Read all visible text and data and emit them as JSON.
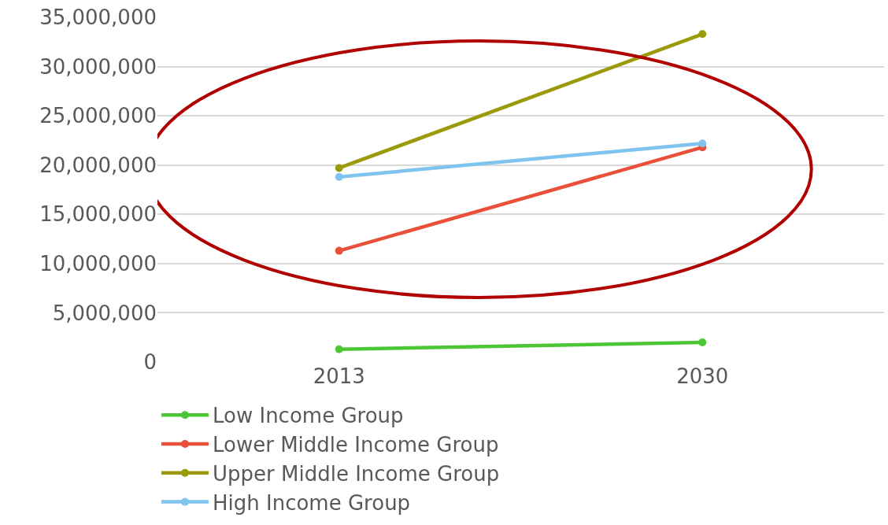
{
  "chart_data": {
    "type": "line",
    "categories": [
      "2013",
      "2030"
    ],
    "series": [
      {
        "name": "Low Income Group",
        "color": "#4dc636",
        "values": [
          1300000,
          2000000
        ]
      },
      {
        "name": "Lower Middle Income Group",
        "color": "#e8503a",
        "values": [
          11300000,
          21800000
        ]
      },
      {
        "name": "Upper Middle Income Group",
        "color": "#9a9a0a",
        "values": [
          19700000,
          33300000
        ]
      },
      {
        "name": "High Income Group",
        "color": "#7fc3ee",
        "values": [
          18800000,
          22200000
        ]
      }
    ],
    "ylim": [
      0,
      35000000
    ],
    "yticks": [
      0,
      {
        "value": 5000000,
        "label": "5,000,000"
      },
      {
        "value": 10000000,
        "label": "10,000,000"
      },
      {
        "value": 15000000,
        "label": "15,000,000"
      },
      {
        "value": 20000000,
        "label": "20,000,000"
      },
      {
        "value": 25000000,
        "label": "25,000,000"
      },
      {
        "value": 30000000,
        "label": "30,000,000"
      },
      {
        "value": 35000000,
        "label": "35,000,000"
      }
    ],
    "grid": "y",
    "legend": "bottom",
    "marker": "circle",
    "line_style": "solid"
  }
}
